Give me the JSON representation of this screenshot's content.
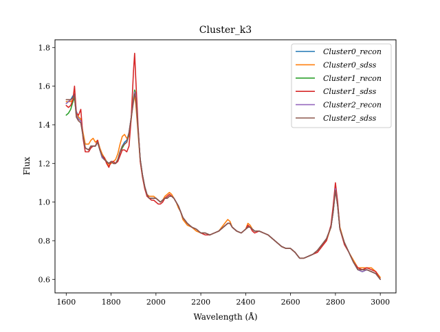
{
  "chart_data": {
    "type": "line",
    "title": "Cluster_k3",
    "xlabel": "Wavelength (Å)",
    "ylabel": "Flux",
    "xlim": [
      1550,
      3070
    ],
    "ylim": [
      0.53,
      1.84
    ],
    "xticks": [
      1600,
      1800,
      2000,
      2200,
      2400,
      2600,
      2800,
      3000
    ],
    "yticks": [
      0.6,
      0.8,
      1.0,
      1.2,
      1.4,
      1.6,
      1.8
    ],
    "xtick_labels": [
      "1600",
      "1800",
      "2000",
      "2200",
      "2400",
      "2600",
      "2800",
      "3000"
    ],
    "ytick_labels": [
      "0.6",
      "0.8",
      "1.0",
      "1.2",
      "1.4",
      "1.6",
      "1.8"
    ],
    "grid": false,
    "legend_position": "top-right",
    "x": [
      1600,
      1610,
      1620,
      1630,
      1637,
      1645,
      1655,
      1665,
      1675,
      1685,
      1700,
      1710,
      1720,
      1730,
      1740,
      1750,
      1760,
      1770,
      1780,
      1790,
      1800,
      1810,
      1820,
      1830,
      1840,
      1850,
      1860,
      1870,
      1880,
      1890,
      1900,
      1905,
      1910,
      1920,
      1930,
      1940,
      1950,
      1960,
      1970,
      1980,
      1990,
      2000,
      2010,
      2020,
      2030,
      2040,
      2050,
      2060,
      2070,
      2080,
      2090,
      2100,
      2110,
      2120,
      2140,
      2160,
      2180,
      2200,
      2220,
      2240,
      2260,
      2280,
      2300,
      2320,
      2330,
      2340,
      2360,
      2380,
      2400,
      2410,
      2420,
      2430,
      2440,
      2460,
      2480,
      2500,
      2520,
      2540,
      2560,
      2580,
      2600,
      2620,
      2640,
      2660,
      2680,
      2700,
      2720,
      2740,
      2760,
      2780,
      2790,
      2800,
      2810,
      2820,
      2840,
      2860,
      2880,
      2900,
      2920,
      2940,
      2960,
      2980,
      3000
    ],
    "series": [
      {
        "name": "Cluster0_recon",
        "color": "#1f77b4",
        "values": [
          1.51,
          1.52,
          1.53,
          1.55,
          1.56,
          1.47,
          1.44,
          1.43,
          1.35,
          1.28,
          1.27,
          1.29,
          1.29,
          1.29,
          1.31,
          1.27,
          1.24,
          1.23,
          1.21,
          1.2,
          1.21,
          1.2,
          1.2,
          1.22,
          1.26,
          1.29,
          1.31,
          1.32,
          1.36,
          1.44,
          1.53,
          1.57,
          1.55,
          1.38,
          1.22,
          1.14,
          1.08,
          1.04,
          1.02,
          1.02,
          1.02,
          1.02,
          1.01,
          1.0,
          1.01,
          1.02,
          1.02,
          1.03,
          1.03,
          1.02,
          1.0,
          0.98,
          0.95,
          0.92,
          0.89,
          0.87,
          0.86,
          0.84,
          0.84,
          0.83,
          0.84,
          0.85,
          0.87,
          0.89,
          0.89,
          0.87,
          0.85,
          0.84,
          0.86,
          0.87,
          0.87,
          0.86,
          0.85,
          0.85,
          0.84,
          0.83,
          0.81,
          0.79,
          0.77,
          0.76,
          0.76,
          0.74,
          0.71,
          0.71,
          0.72,
          0.73,
          0.75,
          0.78,
          0.81,
          0.87,
          0.95,
          1.07,
          0.98,
          0.86,
          0.79,
          0.74,
          0.69,
          0.65,
          0.64,
          0.65,
          0.64,
          0.63,
          0.6
        ]
      },
      {
        "name": "Cluster0_sdss",
        "color": "#ff7f0e",
        "values": [
          1.52,
          1.52,
          1.52,
          1.53,
          1.54,
          1.46,
          1.44,
          1.43,
          1.36,
          1.3,
          1.3,
          1.32,
          1.33,
          1.31,
          1.32,
          1.28,
          1.25,
          1.23,
          1.21,
          1.19,
          1.2,
          1.21,
          1.22,
          1.25,
          1.3,
          1.34,
          1.35,
          1.33,
          1.34,
          1.43,
          1.54,
          1.55,
          1.51,
          1.36,
          1.21,
          1.13,
          1.07,
          1.04,
          1.03,
          1.03,
          1.03,
          1.02,
          1.01,
          1.0,
          1.01,
          1.03,
          1.04,
          1.05,
          1.04,
          1.02,
          1.0,
          0.97,
          0.95,
          0.91,
          0.88,
          0.87,
          0.85,
          0.84,
          0.84,
          0.83,
          0.84,
          0.85,
          0.88,
          0.91,
          0.9,
          0.87,
          0.85,
          0.84,
          0.86,
          0.89,
          0.88,
          0.86,
          0.85,
          0.85,
          0.84,
          0.83,
          0.81,
          0.79,
          0.77,
          0.76,
          0.76,
          0.74,
          0.71,
          0.71,
          0.72,
          0.73,
          0.75,
          0.78,
          0.8,
          0.87,
          0.96,
          1.08,
          0.99,
          0.87,
          0.79,
          0.74,
          0.7,
          0.66,
          0.66,
          0.66,
          0.66,
          0.64,
          0.61
        ]
      },
      {
        "name": "Cluster1_recon",
        "color": "#2ca02c",
        "values": [
          1.45,
          1.46,
          1.48,
          1.52,
          1.54,
          1.45,
          1.43,
          1.42,
          1.34,
          1.28,
          1.27,
          1.29,
          1.29,
          1.29,
          1.31,
          1.27,
          1.23,
          1.22,
          1.21,
          1.2,
          1.21,
          1.2,
          1.2,
          1.22,
          1.26,
          1.28,
          1.3,
          1.31,
          1.35,
          1.44,
          1.54,
          1.58,
          1.56,
          1.38,
          1.22,
          1.14,
          1.08,
          1.04,
          1.02,
          1.02,
          1.02,
          1.02,
          1.01,
          1.0,
          1.01,
          1.02,
          1.02,
          1.03,
          1.03,
          1.02,
          1.0,
          0.98,
          0.95,
          0.92,
          0.89,
          0.87,
          0.86,
          0.84,
          0.84,
          0.83,
          0.84,
          0.85,
          0.87,
          0.89,
          0.89,
          0.87,
          0.85,
          0.84,
          0.86,
          0.87,
          0.87,
          0.86,
          0.85,
          0.85,
          0.84,
          0.83,
          0.81,
          0.79,
          0.77,
          0.76,
          0.76,
          0.74,
          0.71,
          0.71,
          0.72,
          0.73,
          0.75,
          0.78,
          0.81,
          0.87,
          0.95,
          1.07,
          0.98,
          0.86,
          0.79,
          0.74,
          0.69,
          0.65,
          0.64,
          0.65,
          0.64,
          0.63,
          0.6
        ]
      },
      {
        "name": "Cluster1_sdss",
        "color": "#d62728",
        "values": [
          1.5,
          1.49,
          1.5,
          1.53,
          1.6,
          1.46,
          1.45,
          1.48,
          1.33,
          1.26,
          1.26,
          1.28,
          1.29,
          1.29,
          1.32,
          1.27,
          1.24,
          1.23,
          1.2,
          1.18,
          1.21,
          1.21,
          1.2,
          1.21,
          1.24,
          1.27,
          1.27,
          1.26,
          1.29,
          1.44,
          1.68,
          1.77,
          1.64,
          1.4,
          1.21,
          1.13,
          1.07,
          1.03,
          1.02,
          1.01,
          1.01,
          1.0,
          0.99,
          0.99,
          1.0,
          1.02,
          1.03,
          1.04,
          1.03,
          1.02,
          1.0,
          0.98,
          0.95,
          0.92,
          0.89,
          0.87,
          0.86,
          0.84,
          0.83,
          0.83,
          0.84,
          0.85,
          0.87,
          0.89,
          0.89,
          0.87,
          0.85,
          0.84,
          0.86,
          0.88,
          0.87,
          0.85,
          0.84,
          0.85,
          0.84,
          0.83,
          0.81,
          0.79,
          0.77,
          0.76,
          0.76,
          0.74,
          0.71,
          0.71,
          0.72,
          0.73,
          0.74,
          0.77,
          0.8,
          0.88,
          0.98,
          1.1,
          1.0,
          0.86,
          0.78,
          0.74,
          0.69,
          0.66,
          0.65,
          0.66,
          0.65,
          0.64,
          0.6
        ]
      },
      {
        "name": "Cluster2_recon",
        "color": "#9467bd",
        "values": [
          1.51,
          1.52,
          1.53,
          1.54,
          1.55,
          1.45,
          1.43,
          1.42,
          1.34,
          1.28,
          1.27,
          1.29,
          1.29,
          1.29,
          1.31,
          1.27,
          1.23,
          1.22,
          1.21,
          1.2,
          1.21,
          1.2,
          1.2,
          1.22,
          1.26,
          1.29,
          1.3,
          1.31,
          1.36,
          1.44,
          1.53,
          1.57,
          1.55,
          1.38,
          1.22,
          1.14,
          1.08,
          1.04,
          1.02,
          1.02,
          1.02,
          1.02,
          1.01,
          1.0,
          1.01,
          1.02,
          1.02,
          1.03,
          1.03,
          1.02,
          1.0,
          0.98,
          0.95,
          0.92,
          0.89,
          0.87,
          0.86,
          0.84,
          0.84,
          0.83,
          0.84,
          0.85,
          0.87,
          0.89,
          0.89,
          0.87,
          0.85,
          0.84,
          0.86,
          0.87,
          0.87,
          0.86,
          0.85,
          0.85,
          0.84,
          0.83,
          0.81,
          0.79,
          0.77,
          0.76,
          0.76,
          0.74,
          0.71,
          0.71,
          0.72,
          0.73,
          0.75,
          0.78,
          0.81,
          0.87,
          0.95,
          1.07,
          0.98,
          0.86,
          0.79,
          0.74,
          0.69,
          0.65,
          0.64,
          0.65,
          0.64,
          0.63,
          0.6
        ]
      },
      {
        "name": "Cluster2_sdss",
        "color": "#8c564b",
        "values": [
          1.53,
          1.53,
          1.53,
          1.54,
          1.55,
          1.44,
          1.42,
          1.41,
          1.34,
          1.28,
          1.27,
          1.29,
          1.29,
          1.29,
          1.31,
          1.27,
          1.24,
          1.22,
          1.21,
          1.2,
          1.21,
          1.2,
          1.2,
          1.22,
          1.26,
          1.29,
          1.3,
          1.31,
          1.36,
          1.44,
          1.52,
          1.56,
          1.54,
          1.38,
          1.22,
          1.14,
          1.08,
          1.04,
          1.02,
          1.02,
          1.02,
          1.02,
          1.01,
          1.0,
          1.01,
          1.02,
          1.02,
          1.03,
          1.03,
          1.02,
          1.0,
          0.98,
          0.95,
          0.92,
          0.89,
          0.87,
          0.86,
          0.84,
          0.84,
          0.83,
          0.84,
          0.85,
          0.87,
          0.89,
          0.89,
          0.87,
          0.85,
          0.84,
          0.86,
          0.87,
          0.87,
          0.86,
          0.85,
          0.85,
          0.84,
          0.83,
          0.81,
          0.79,
          0.77,
          0.76,
          0.76,
          0.74,
          0.71,
          0.71,
          0.72,
          0.73,
          0.75,
          0.78,
          0.81,
          0.87,
          0.95,
          1.06,
          0.98,
          0.86,
          0.79,
          0.74,
          0.69,
          0.65,
          0.65,
          0.65,
          0.64,
          0.63,
          0.6
        ]
      }
    ]
  }
}
